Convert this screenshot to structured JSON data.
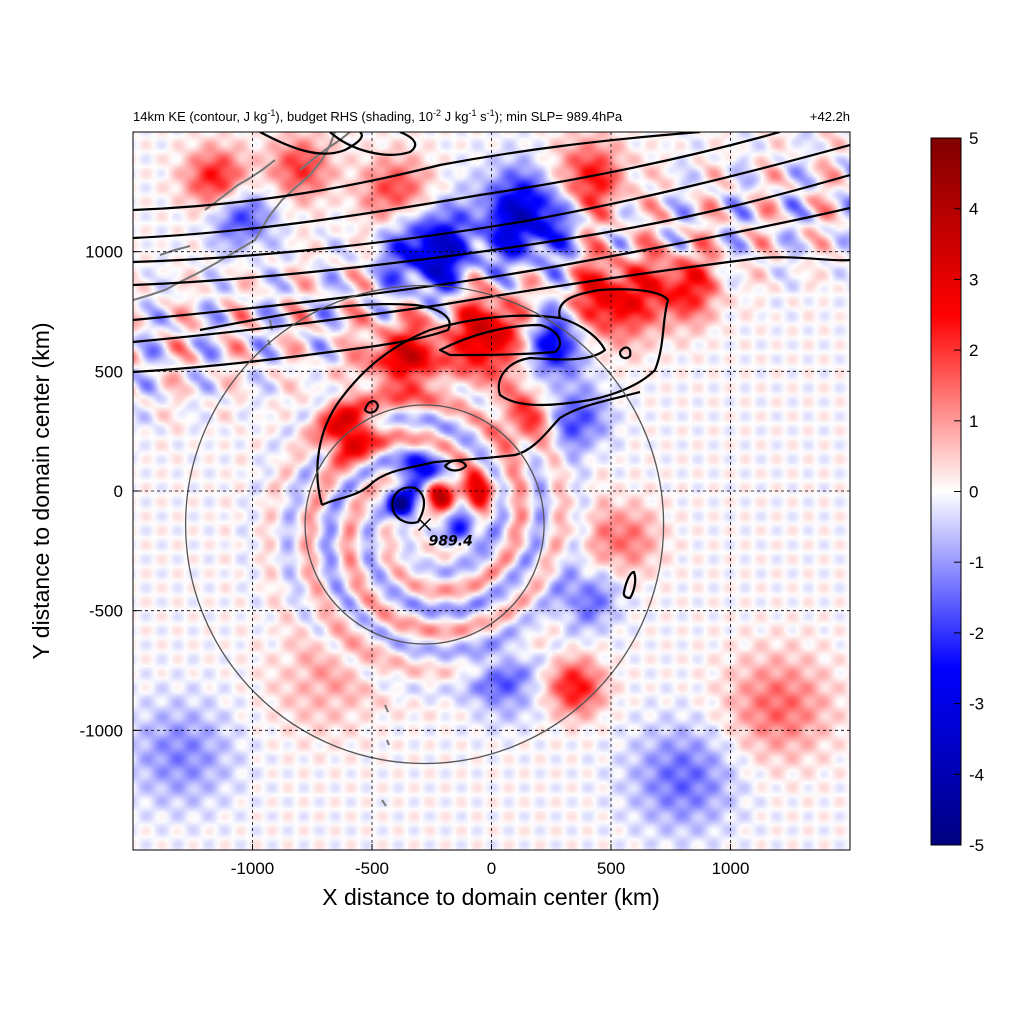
{
  "chart_data": {
    "type": "heatmap",
    "title": "14km KE (contour, J kg⁻¹), budget RHS (shading, 10⁻² J kg⁻¹ s⁻¹); min SLP= 989.4hPa",
    "title_parts": {
      "p1": "14km KE (contour, J kg",
      "e1": "-1",
      "p2": "), budget RHS (shading, 10",
      "e2": "-2",
      "p3": " J kg",
      "e3": "-1",
      "p4": " s",
      "e4": "-1",
      "p5": "); min SLP= 989.4hPa"
    },
    "time_label": "+42.2h",
    "xlabel": "X distance to domain center (km)",
    "ylabel": "Y distance to domain center (km)",
    "xlim": [
      -1500,
      1500
    ],
    "ylim": [
      -1500,
      1500
    ],
    "xticks": [
      -1000,
      -500,
      0,
      500,
      1000
    ],
    "yticks": [
      -1000,
      -500,
      0,
      500,
      1000
    ],
    "grid": "dashed",
    "colorbar": {
      "range": [
        -5,
        5
      ],
      "ticks": [
        -5,
        -4,
        -3,
        -2,
        -1,
        0,
        1,
        2,
        3,
        4,
        5
      ],
      "colors": [
        "#000080",
        "#0000ff",
        "#ffffff",
        "#ff0000",
        "#800000"
      ]
    },
    "storm_center": {
      "x": -280,
      "y": -140,
      "label": "989.4"
    },
    "range_circles_km": [
      500,
      1000
    ],
    "shading_features": [
      {
        "x": -360,
        "y": 550,
        "sigma": 110,
        "value": 3.0
      },
      {
        "x": -600,
        "y": 250,
        "sigma": 80,
        "value": 3.5
      },
      {
        "x": 0,
        "y": 650,
        "sigma": 120,
        "value": 3.5
      },
      {
        "x": 250,
        "y": 620,
        "sigma": 100,
        "value": -3.0
      },
      {
        "x": 500,
        "y": 800,
        "sigma": 120,
        "value": 3.0
      },
      {
        "x": 800,
        "y": 850,
        "sigma": 100,
        "value": 2.5
      },
      {
        "x": 150,
        "y": 1150,
        "sigma": 130,
        "value": -3.5
      },
      {
        "x": -250,
        "y": 1000,
        "sigma": 120,
        "value": -3.5
      },
      {
        "x": 400,
        "y": 1300,
        "sigma": 110,
        "value": 2.5
      },
      {
        "x": -1150,
        "y": 1300,
        "sigma": 90,
        "value": 2.5
      },
      {
        "x": -800,
        "y": 1350,
        "sigma": 90,
        "value": 2.0
      },
      {
        "x": -1050,
        "y": 1150,
        "sigma": 90,
        "value": -2.0
      },
      {
        "x": -400,
        "y": 1250,
        "sigma": 100,
        "value": 2.0
      },
      {
        "x": -380,
        "y": -60,
        "sigma": 35,
        "value": -5.0
      },
      {
        "x": -220,
        "y": -20,
        "sigma": 45,
        "value": 4.0
      },
      {
        "x": -300,
        "y": 60,
        "sigma": 60,
        "value": -3.0
      },
      {
        "x": -60,
        "y": 0,
        "sigma": 60,
        "value": 2.5
      },
      {
        "x": -120,
        "y": -150,
        "sigma": 60,
        "value": -2.0
      },
      {
        "x": 150,
        "y": 300,
        "sigma": 90,
        "value": 2.0
      },
      {
        "x": 350,
        "y": 300,
        "sigma": 90,
        "value": -2.0
      },
      {
        "x": 550,
        "y": -200,
        "sigma": 100,
        "value": 1.5
      },
      {
        "x": 400,
        "y": -450,
        "sigma": 90,
        "value": -1.5
      },
      {
        "x": 350,
        "y": -820,
        "sigma": 80,
        "value": 2.5
      },
      {
        "x": 50,
        "y": -800,
        "sigma": 100,
        "value": -1.5
      },
      {
        "x": 800,
        "y": -1200,
        "sigma": 150,
        "value": -1.5
      },
      {
        "x": 1200,
        "y": -900,
        "sigma": 150,
        "value": 1.5
      },
      {
        "x": -1300,
        "y": -1100,
        "sigma": 150,
        "value": -1.2
      },
      {
        "x": -700,
        "y": -800,
        "sigma": 150,
        "value": 0.8
      }
    ]
  }
}
